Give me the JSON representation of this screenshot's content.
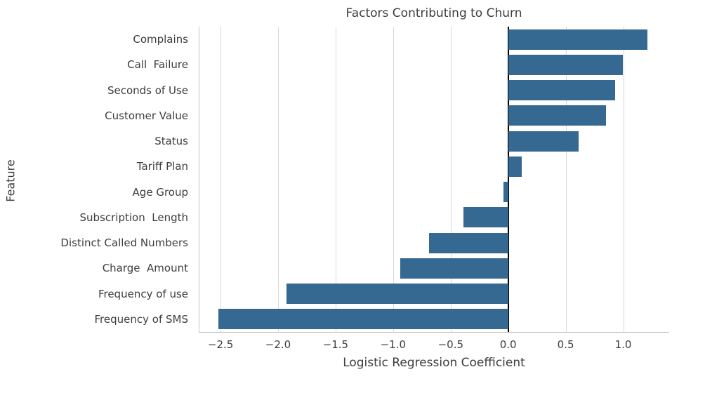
{
  "colors": {
    "bar": "#356992",
    "grid": "#d9d9d9",
    "spine": "#c6c6c6",
    "zero_line": "#000000",
    "text": "#3d3d3d",
    "background": "#ffffff"
  },
  "chart_data": {
    "type": "bar",
    "orientation": "horizontal",
    "title": "Factors Contributing to Churn",
    "xlabel": "Logistic Regression Coefficient",
    "ylabel": "Feature",
    "categories": [
      "Complains",
      "Call  Failure",
      "Seconds of Use",
      "Customer Value",
      "Status",
      "Tariff Plan",
      "Age Group",
      "Subscription  Length",
      "Distinct Called Numbers",
      "Charge  Amount",
      "Frequency of use",
      "Frequency of SMS"
    ],
    "values": [
      1.21,
      1.0,
      0.93,
      0.85,
      0.61,
      0.12,
      -0.04,
      -0.39,
      -0.69,
      -0.94,
      -1.93,
      -2.52
    ],
    "xlim": [
      -2.69,
      1.4
    ],
    "xticks": [
      -2.5,
      -2.0,
      -1.5,
      -1.0,
      -0.5,
      0.0,
      0.5,
      1.0
    ],
    "xtick_labels": [
      "−2.5",
      "−2.0",
      "−1.5",
      "−1.0",
      "−0.5",
      "0.0",
      "0.5",
      "1.0"
    ],
    "grid": true,
    "zero_line": true,
    "legend": "none"
  }
}
